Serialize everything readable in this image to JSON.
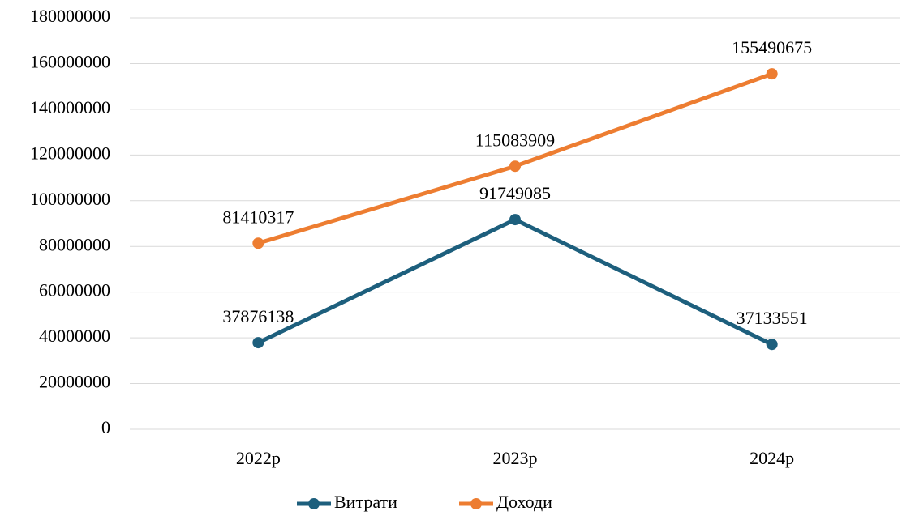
{
  "chart_data": {
    "type": "line",
    "categories": [
      "2022р",
      "2023р",
      "2024р"
    ],
    "series": [
      {
        "name": "Витрати",
        "color": "#1d5f7d",
        "values": [
          37876138,
          91749085,
          37133551
        ]
      },
      {
        "name": "Доходи",
        "color": "#ed7d31",
        "values": [
          81410317,
          115083909,
          155490675
        ]
      }
    ],
    "ylim": [
      0,
      180000000
    ],
    "yticks": [
      0,
      20000000,
      40000000,
      60000000,
      80000000,
      100000000,
      120000000,
      140000000,
      160000000,
      180000000
    ],
    "grid": true,
    "legend": "bottom"
  }
}
